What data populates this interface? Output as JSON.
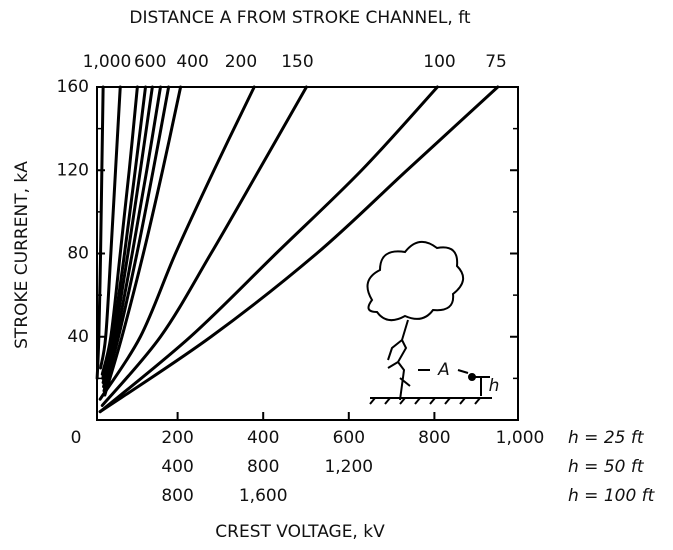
{
  "chart_data": {
    "type": "line",
    "title": "DISTANCE A FROM STROKE CHANNEL, ft",
    "xlabel": "CREST VOLTAGE, kV",
    "ylabel": "STROKE CURRENT, kA",
    "xlim": [
      0,
      1000
    ],
    "ylim": [
      0,
      160
    ],
    "xticks": [
      0,
      200,
      400,
      600,
      800,
      {
        "value": 1000,
        "label": "1,000"
      }
    ],
    "yticks": [
      40,
      80,
      120,
      160
    ],
    "yminor_ticks": [
      20,
      60,
      100,
      140
    ],
    "x2ticks": [
      {
        "value": 35,
        "label": "1,000"
      },
      {
        "value": 136,
        "label": "600"
      },
      {
        "value": 235,
        "label": "400"
      },
      {
        "value": 348,
        "label": "200"
      },
      {
        "value": 480,
        "label": "150"
      },
      {
        "value": 812,
        "label": "100"
      },
      {
        "value": 944,
        "label": "75"
      }
    ],
    "xtick_rows": [
      {
        "label": "h = 25 ft"
      },
      {
        "label": "h = 50 ft",
        "ticks": [
          {
            "value": 200,
            "label": "400"
          },
          {
            "value": 400,
            "label": "800"
          },
          {
            "value": 600,
            "label": "1,200"
          }
        ]
      },
      {
        "label": "h = 100 ft",
        "ticks": [
          {
            "value": 200,
            "label": "800"
          },
          {
            "value": 400,
            "label": "1,600"
          }
        ]
      }
    ],
    "color": "#000000",
    "annotations": [
      "A",
      "h"
    ],
    "series": [
      {
        "x": [
          12,
          16,
          20,
          23,
          26
        ],
        "values": [
          20,
          40,
          80,
          120,
          160
        ]
      },
      {
        "x": [
          20,
          32,
          44,
          55,
          66
        ],
        "values": [
          25,
          40,
          80,
          120,
          160
        ]
      },
      {
        "x": [
          24,
          44,
          66,
          87,
          106
        ],
        "values": [
          22,
          40,
          80,
          120,
          160
        ]
      },
      {
        "x": [
          25,
          48,
          76,
          101,
          125
        ],
        "values": [
          20,
          40,
          80,
          120,
          160
        ]
      },
      {
        "x": [
          26,
          52,
          84,
          113,
          141
        ],
        "values": [
          18,
          40,
          80,
          120,
          160
        ]
      },
      {
        "x": [
          27,
          57,
          94,
          128,
          160
        ],
        "values": [
          16,
          40,
          80,
          120,
          160
        ]
      },
      {
        "x": [
          28,
          62,
          105,
          143,
          179
        ],
        "values": [
          14,
          40,
          80,
          120,
          160
        ]
      },
      {
        "x": [
          30,
          70,
          120,
          165,
          207
        ],
        "values": [
          12,
          40,
          80,
          120,
          160
        ]
      },
      {
        "x": [
          19,
          113,
          195,
          285,
          379
        ],
        "values": [
          10,
          40,
          80,
          120,
          160
        ]
      },
      {
        "x": [
          24,
          160,
          278,
          390,
          501
        ],
        "values": [
          7,
          40,
          80,
          120,
          160
        ]
      },
      {
        "x": [
          19,
          230,
          430,
          630,
          807
        ],
        "values": [
          4,
          40,
          80,
          120,
          160
        ]
      },
      {
        "x": [
          19,
          278,
          525,
          736,
          948
        ],
        "values": [
          4,
          40,
          80,
          120,
          160
        ]
      }
    ]
  }
}
